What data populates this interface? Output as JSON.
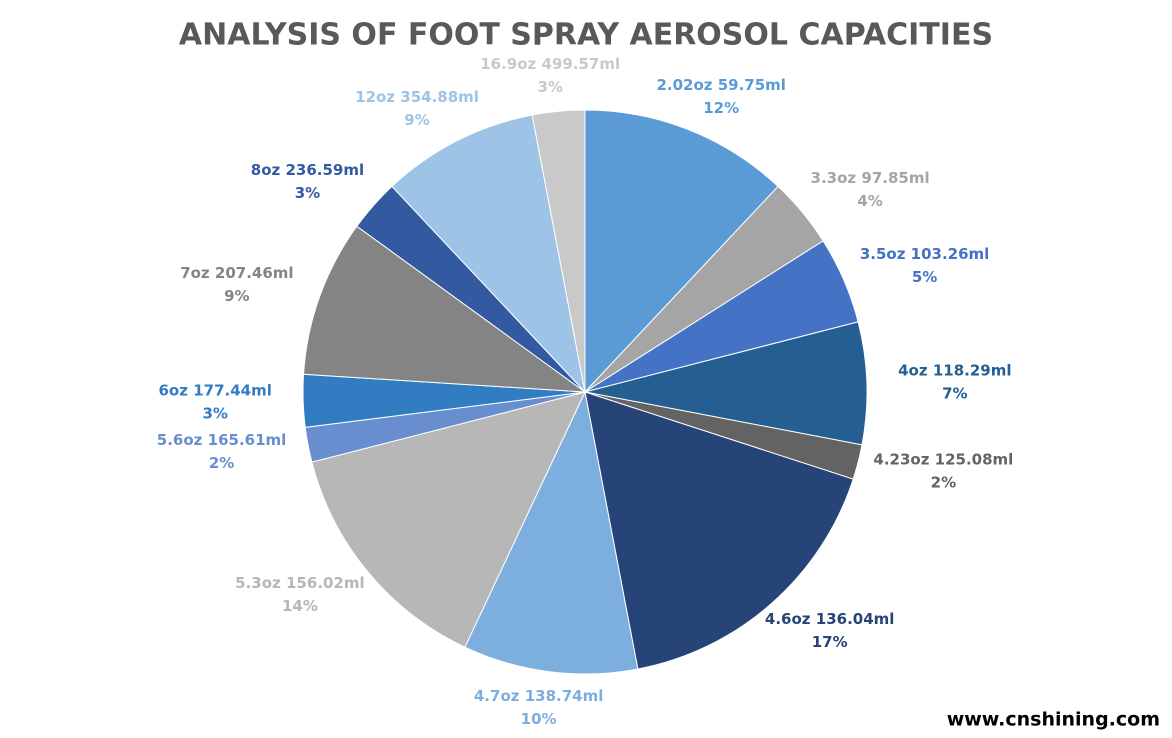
{
  "chart_data": {
    "type": "pie",
    "title": "ANALYSIS OF FOOT SPRAY AEROSOL CAPACITIES",
    "categories": [
      "2.02oz 59.75ml",
      "3.3oz 97.85ml",
      "3.5oz 103.26ml",
      "4oz 118.29ml",
      "4.23oz 125.08ml",
      "4.6oz 136.04ml",
      "4.7oz 138.74ml",
      "5.3oz 156.02ml",
      "5.6oz 165.61ml",
      "6oz 177.44ml",
      "7oz 207.46ml",
      "8oz 236.59ml",
      "12oz 354.88ml",
      "16.9oz 499.57ml"
    ],
    "values": [
      12,
      4,
      5,
      7,
      2,
      17,
      10,
      14,
      2,
      3,
      9,
      3,
      9,
      3
    ],
    "value_labels": [
      "12%",
      "4%",
      "5%",
      "7%",
      "2%",
      "17%",
      "10%",
      "14%",
      "2%",
      "3%",
      "9%",
      "3%",
      "9%",
      "3%"
    ],
    "colors": [
      "#5b9bd5",
      "#a5a5a5",
      "#4472c4",
      "#255e91",
      "#636363",
      "#264478",
      "#7cafdd",
      "#b7b7b7",
      "#698ed0",
      "#327dc2",
      "#848484",
      "#335aa1",
      "#9dc3e6",
      "#c9c9c9"
    ],
    "watermark": "www.cnshining.com"
  }
}
